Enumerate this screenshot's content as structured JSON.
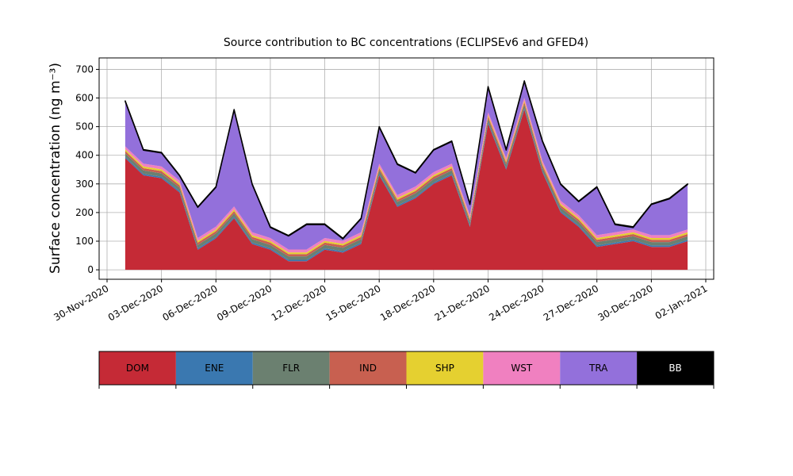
{
  "chart_data": {
    "type": "stacked_area",
    "title": "Source contribution to BC concentrations (ECLIPSEv6 and GFED4)",
    "ylabel": "Surface concentration (ng m⁻³)",
    "x": [
      "2020-12-01",
      "2020-12-02",
      "2020-12-03",
      "2020-12-04",
      "2020-12-05",
      "2020-12-06",
      "2020-12-07",
      "2020-12-08",
      "2020-12-09",
      "2020-12-10",
      "2020-12-11",
      "2020-12-12",
      "2020-12-13",
      "2020-12-14",
      "2020-12-15",
      "2020-12-16",
      "2020-12-17",
      "2020-12-18",
      "2020-12-19",
      "2020-12-20",
      "2020-12-21",
      "2020-12-22",
      "2020-12-23",
      "2020-12-24",
      "2020-12-25",
      "2020-12-26",
      "2020-12-27",
      "2020-12-28",
      "2020-12-29",
      "2020-12-30",
      "2020-12-31",
      "2021-01-01"
    ],
    "xlim": [
      "2020-11-30",
      "2021-01-02"
    ],
    "xticks": [
      {
        "value": "2020-11-30",
        "label": "30-Nov-2020"
      },
      {
        "value": "2020-12-03",
        "label": "03-Dec-2020"
      },
      {
        "value": "2020-12-06",
        "label": "06-Dec-2020"
      },
      {
        "value": "2020-12-09",
        "label": "09-Dec-2020"
      },
      {
        "value": "2020-12-12",
        "label": "12-Dec-2020"
      },
      {
        "value": "2020-12-15",
        "label": "15-Dec-2020"
      },
      {
        "value": "2020-12-18",
        "label": "18-Dec-2020"
      },
      {
        "value": "2020-12-21",
        "label": "21-Dec-2020"
      },
      {
        "value": "2020-12-24",
        "label": "24-Dec-2020"
      },
      {
        "value": "2020-12-27",
        "label": "27-Dec-2020"
      },
      {
        "value": "2020-12-30",
        "label": "30-Dec-2020"
      },
      {
        "value": "2021-01-02",
        "label": "02-Jan-2021"
      }
    ],
    "ylim": [
      -33,
      740
    ],
    "yticks": [
      0,
      100,
      200,
      300,
      400,
      500,
      600,
      700
    ],
    "grid": true,
    "series": [
      {
        "name": "DOM",
        "color": "#c52a36",
        "values": [
          390,
          330,
          320,
          270,
          70,
          110,
          180,
          90,
          70,
          30,
          30,
          70,
          60,
          90,
          330,
          220,
          250,
          300,
          330,
          150,
          510,
          350,
          560,
          340,
          200,
          150,
          80,
          90,
          100,
          80,
          80,
          100
        ]
      },
      {
        "name": "ENE",
        "color": "#3a78b0",
        "values": [
          5,
          5,
          5,
          5,
          5,
          5,
          5,
          5,
          5,
          5,
          5,
          5,
          5,
          5,
          5,
          5,
          5,
          5,
          5,
          5,
          5,
          5,
          5,
          5,
          5,
          5,
          5,
          5,
          5,
          5,
          5,
          5
        ]
      },
      {
        "name": "FLR",
        "color": "#6b8070",
        "values": [
          12,
          12,
          12,
          12,
          12,
          12,
          12,
          12,
          12,
          12,
          12,
          12,
          12,
          12,
          12,
          12,
          12,
          12,
          12,
          12,
          12,
          12,
          12,
          12,
          12,
          12,
          12,
          12,
          12,
          12,
          12,
          12
        ]
      },
      {
        "name": "IND",
        "color": "#c86050",
        "values": [
          8,
          8,
          8,
          8,
          8,
          8,
          8,
          8,
          8,
          8,
          8,
          8,
          8,
          8,
          8,
          8,
          8,
          8,
          8,
          8,
          8,
          8,
          8,
          8,
          8,
          8,
          8,
          8,
          8,
          8,
          8,
          8
        ]
      },
      {
        "name": "SHP",
        "color": "#e5d030",
        "values": [
          6,
          6,
          6,
          6,
          6,
          6,
          6,
          6,
          6,
          6,
          6,
          6,
          6,
          6,
          6,
          6,
          6,
          6,
          6,
          6,
          6,
          6,
          6,
          6,
          6,
          6,
          6,
          6,
          6,
          6,
          6,
          6
        ]
      },
      {
        "name": "WST",
        "color": "#f080c0",
        "values": [
          10,
          10,
          10,
          10,
          10,
          10,
          10,
          10,
          10,
          10,
          10,
          10,
          10,
          10,
          10,
          10,
          10,
          10,
          10,
          10,
          10,
          10,
          10,
          10,
          10,
          10,
          10,
          10,
          10,
          10,
          10,
          10
        ]
      },
      {
        "name": "TRA",
        "color": "#9370db",
        "values": [
          157,
          47,
          47,
          17,
          107,
          137,
          337,
          167,
          37,
          47,
          87,
          47,
          7,
          47,
          127,
          107,
          47,
          77,
          77,
          37,
          87,
          27,
          57,
          67,
          57,
          47,
          167,
          27,
          7,
          107,
          127,
          157
        ]
      },
      {
        "name": "BB",
        "color": "#000000",
        "values": [
          2,
          2,
          2,
          2,
          2,
          2,
          2,
          2,
          2,
          2,
          2,
          2,
          2,
          2,
          2,
          2,
          2,
          2,
          2,
          2,
          2,
          2,
          2,
          2,
          2,
          2,
          2,
          2,
          2,
          2,
          2,
          2
        ]
      }
    ]
  }
}
